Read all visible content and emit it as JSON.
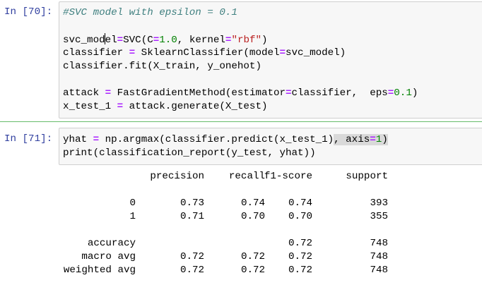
{
  "cells": [
    {
      "prompt": "In [70]:",
      "lines": [
        [
          [
            "#SVC model with epsilon = 0.1",
            "cm"
          ]
        ],
        [],
        [
          [
            "svc_mod",
            ""
          ],
          [
            "|",
            "cursor"
          ],
          [
            "el",
            ""
          ],
          [
            "=",
            "op"
          ],
          [
            "SVC(C",
            ""
          ],
          [
            "=",
            "op"
          ],
          [
            "1.0",
            "num"
          ],
          [
            ", kernel",
            ""
          ],
          [
            "=",
            "op"
          ],
          [
            "\"rbf\"",
            "str"
          ],
          [
            ")",
            ""
          ]
        ],
        [
          [
            "classifier ",
            ""
          ],
          [
            "=",
            "op"
          ],
          [
            " SklearnClassifier(model",
            ""
          ],
          [
            "=",
            "op"
          ],
          [
            "svc_model)",
            ""
          ]
        ],
        [
          [
            "classifier.fit(X_train, y_onehot)",
            ""
          ]
        ],
        [],
        [
          [
            "attack ",
            ""
          ],
          [
            "=",
            "op"
          ],
          [
            " FastGradientMethod(estimator",
            ""
          ],
          [
            "=",
            "op"
          ],
          [
            "classifier,  eps",
            ""
          ],
          [
            "=",
            "op"
          ],
          [
            "0.1",
            "num"
          ],
          [
            ")",
            ""
          ]
        ],
        [
          [
            "x_test_1 ",
            ""
          ],
          [
            "=",
            "op"
          ],
          [
            " attack.generate(X_test)",
            ""
          ]
        ]
      ]
    },
    {
      "prompt": "In [71]:",
      "lines": [
        [
          [
            "yhat ",
            ""
          ],
          [
            "=",
            "op"
          ],
          [
            " np.argmax(classifier.predict(x_test_1)",
            ""
          ],
          [
            ", axis",
            "sel"
          ],
          [
            "=",
            "op sel"
          ],
          [
            "1",
            "num sel"
          ],
          [
            ")",
            "sel"
          ]
        ],
        [
          [
            "print(classification_report(y_test, yhat))",
            ""
          ]
        ]
      ]
    }
  ],
  "report": {
    "headers": [
      "precision",
      "recall",
      "f1-score",
      "support"
    ],
    "rows": [
      {
        "label": "0",
        "precision": "0.73",
        "recall": "0.74",
        "f1": "0.74",
        "support": "393"
      },
      {
        "label": "1",
        "precision": "0.71",
        "recall": "0.70",
        "f1": "0.70",
        "support": "355"
      },
      {
        "label": "accuracy",
        "precision": "",
        "recall": "",
        "f1": "0.72",
        "support": "748"
      },
      {
        "label": "macro avg",
        "precision": "0.72",
        "recall": "0.72",
        "f1": "0.72",
        "support": "748"
      },
      {
        "label": "weighted avg",
        "precision": "0.72",
        "recall": "0.72",
        "f1": "0.72",
        "support": "748"
      }
    ]
  },
  "colors": {
    "prompt": "#303F9F",
    "selected_cell_border": "#66bb6a",
    "operator": "#AA22FF",
    "number": "#008000",
    "string": "#BA2121",
    "comment": "#408080"
  }
}
